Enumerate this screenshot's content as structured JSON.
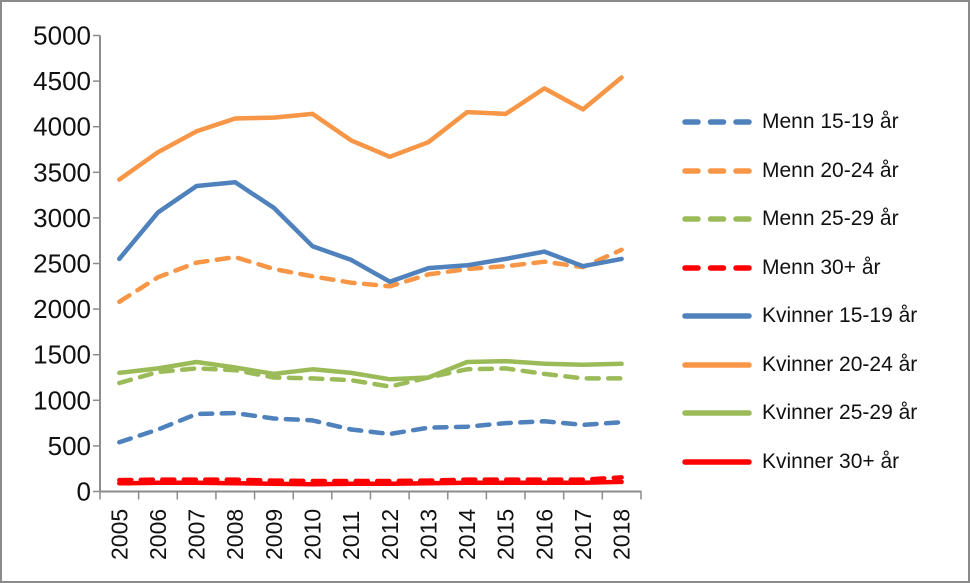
{
  "figure": {
    "background": "#ffffff",
    "border_color": "#8a8a8a"
  },
  "chart_data": {
    "type": "line",
    "title": "",
    "xlabel": "",
    "ylabel": "",
    "categories": [
      "2005",
      "2006",
      "2007",
      "2008",
      "2009",
      "2010",
      "2011",
      "2012",
      "2013",
      "2014",
      "2015",
      "2016",
      "2017",
      "2018"
    ],
    "y_ticks": [
      0,
      500,
      1000,
      1500,
      2000,
      2500,
      3000,
      3500,
      4000,
      4500,
      5000
    ],
    "ylim": [
      0,
      5000
    ],
    "grid": false,
    "legend_position": "right",
    "x_tick_rotation_deg": -90,
    "axis_color": "#8c8c8c",
    "text_color": "#111111",
    "series": [
      {
        "name": "Menn 15-19 år",
        "color": "#4f81bd",
        "style": "dashed",
        "values": [
          540,
          680,
          850,
          860,
          800,
          780,
          680,
          630,
          700,
          710,
          750,
          770,
          730,
          760
        ]
      },
      {
        "name": "Menn 20-24 år",
        "color": "#f79646",
        "style": "dashed",
        "values": [
          2080,
          2350,
          2510,
          2570,
          2440,
          2360,
          2290,
          2250,
          2380,
          2440,
          2470,
          2520,
          2460,
          2650
        ]
      },
      {
        "name": "Menn 25-29 år",
        "color": "#9bbb59",
        "style": "dashed",
        "values": [
          1190,
          1310,
          1350,
          1330,
          1250,
          1240,
          1220,
          1150,
          1250,
          1340,
          1350,
          1290,
          1240,
          1240
        ]
      },
      {
        "name": "Menn 30+ år",
        "color": "#ff0000",
        "style": "dashed",
        "values": [
          125,
          130,
          130,
          130,
          120,
          115,
          115,
          115,
          120,
          130,
          130,
          130,
          130,
          155
        ]
      },
      {
        "name": "Kvinner 15-19 år",
        "color": "#4f81bd",
        "style": "solid",
        "values": [
          2550,
          3060,
          3350,
          3390,
          3110,
          2690,
          2540,
          2300,
          2450,
          2480,
          2550,
          2630,
          2470,
          2550
        ]
      },
      {
        "name": "Kvinner 20-24 år",
        "color": "#f79646",
        "style": "solid",
        "values": [
          3420,
          3720,
          3950,
          4090,
          4100,
          4140,
          3850,
          3670,
          3830,
          4160,
          4140,
          4420,
          4190,
          4540
        ]
      },
      {
        "name": "Kvinner 25-29 år",
        "color": "#9bbb59",
        "style": "solid",
        "values": [
          1300,
          1350,
          1420,
          1360,
          1290,
          1340,
          1300,
          1230,
          1250,
          1420,
          1430,
          1400,
          1390,
          1400
        ]
      },
      {
        "name": "Kvinner 30+ år",
        "color": "#ff0000",
        "style": "solid",
        "values": [
          90,
          95,
          95,
          90,
          85,
          80,
          85,
          85,
          90,
          95,
          95,
          95,
          95,
          105
        ]
      }
    ]
  }
}
